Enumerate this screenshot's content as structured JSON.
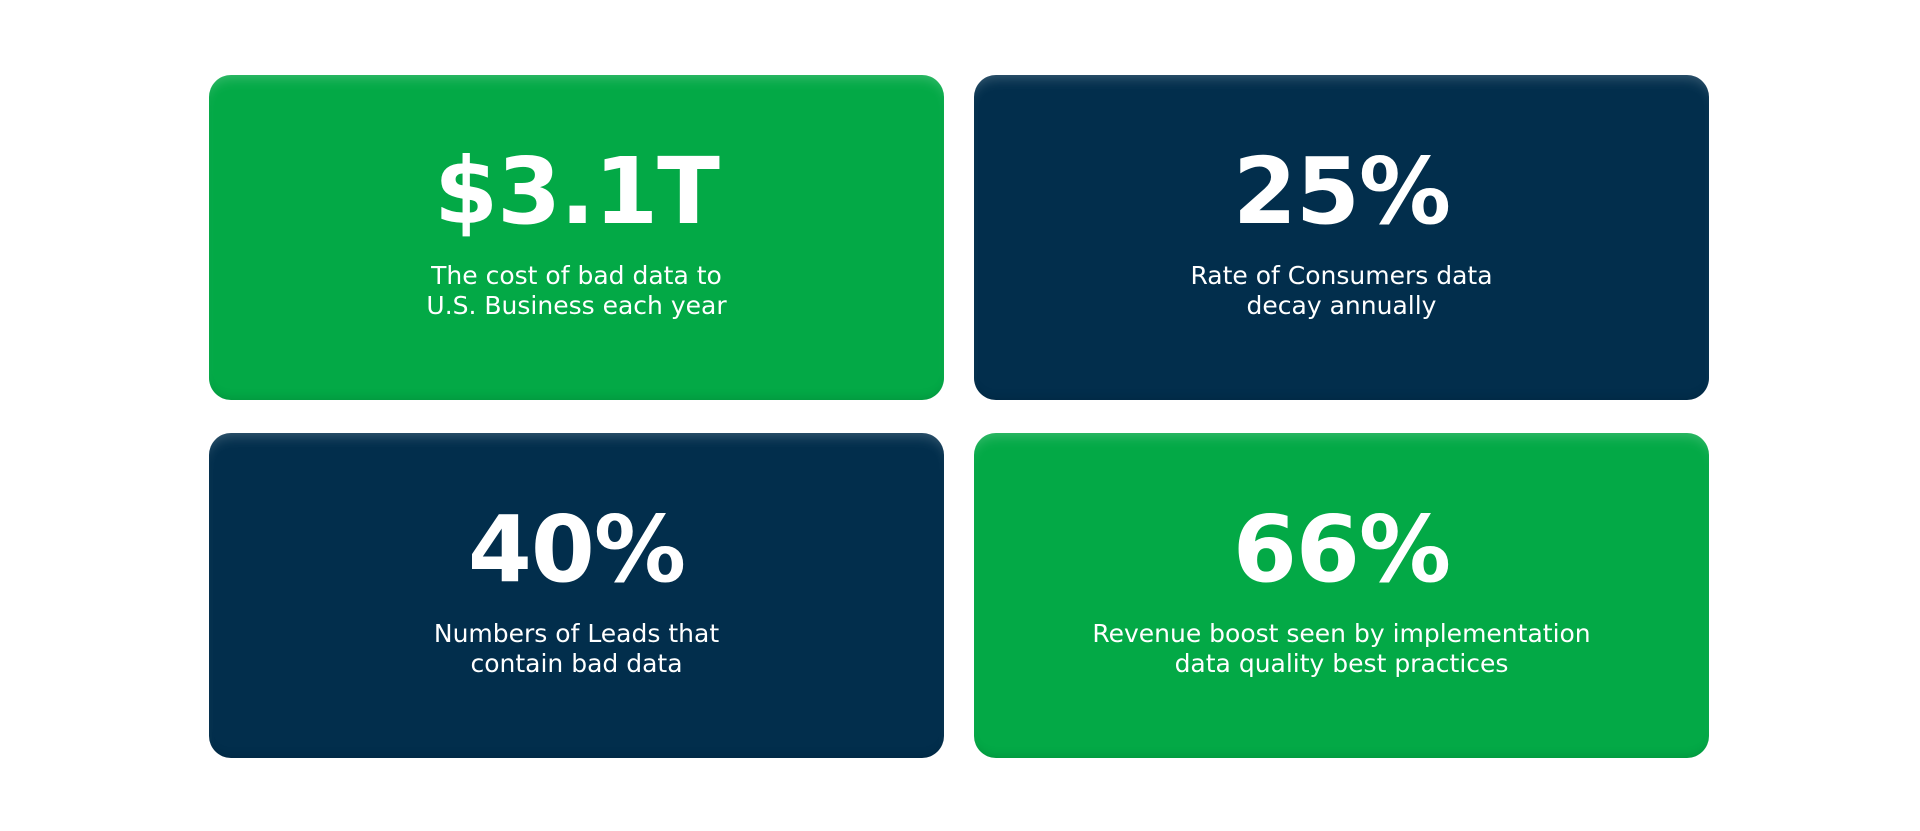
{
  "stats": [
    {
      "value": "$3.1T",
      "description_lines": [
        "The cost of bad data to",
        "U.S. Business each year"
      ],
      "color": "#03a946"
    },
    {
      "value": "25%",
      "description_lines": [
        "Rate of Consumers data",
        "decay annually"
      ],
      "color": "#022e4c"
    },
    {
      "value": "40%",
      "description_lines": [
        "Numbers of Leads that",
        "contain bad data"
      ],
      "color": "#022e4c"
    },
    {
      "value": "66%",
      "description_lines": [
        "Revenue boost seen by implementation",
        "data quality best practices"
      ],
      "color": "#03a946"
    }
  ]
}
